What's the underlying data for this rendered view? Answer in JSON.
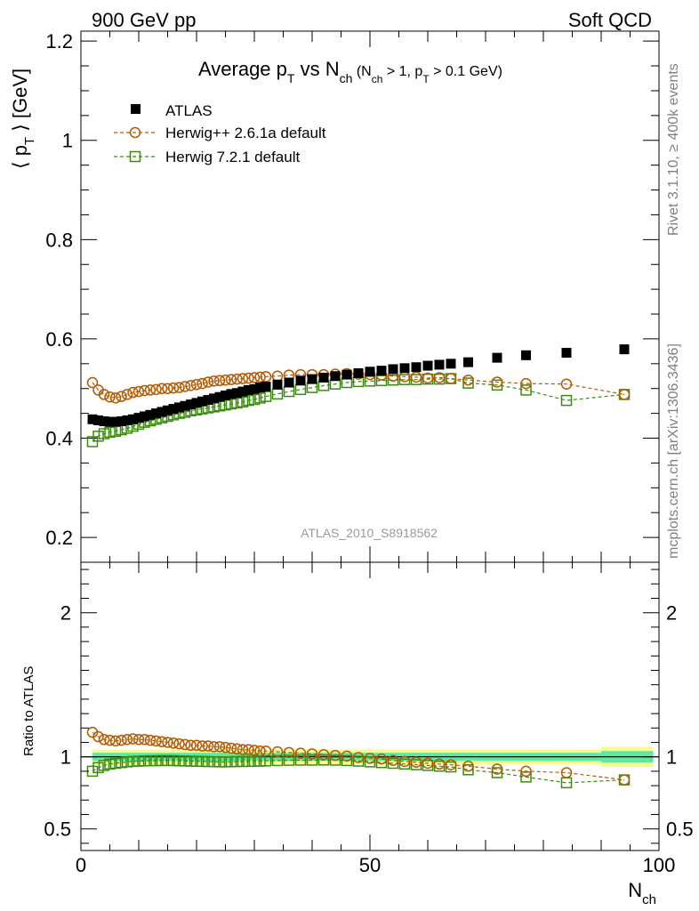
{
  "header": {
    "left": "900 GeV pp",
    "right": "Soft QCD"
  },
  "side_labels": {
    "rivet": "Rivet 3.1.10, ≥ 400k events",
    "mcplots": "mcplots.cern.ch [arXiv:1306.3436]"
  },
  "watermark": "ATLAS_2010_S8918562",
  "colors": {
    "atlas": "#000000",
    "herwigpp": "#b35900",
    "herwig7": "#3a8c0f",
    "band_inner": "#5fe8a0",
    "band_outer": "#fbfb8c"
  },
  "chart_data": [
    {
      "type": "scatter",
      "title": {
        "main": "Average p",
        "main_sub": "T",
        "vs": " vs N",
        "vs_sub": "ch",
        "cond1": " (N",
        "cond1_sub": "ch",
        "cond2": " > 1, p",
        "cond2_sub": "T",
        "cond3": " > 0.1 GeV)"
      },
      "ylabel": {
        "open": "⟨ p",
        "sub": "T",
        "close": " ⟩  [GeV]"
      },
      "xlim": [
        0,
        100
      ],
      "ylim": [
        0.15,
        1.22
      ],
      "yticks": [
        0.2,
        0.4,
        0.6,
        0.8,
        1,
        1.2
      ],
      "ytick_labels": [
        "0.2",
        "0.4",
        "0.6",
        "0.8",
        "1",
        "1.2"
      ],
      "legend_position": "top-left",
      "series": [
        {
          "name": "ATLAS",
          "marker": "filled-square",
          "x": [
            2,
            3,
            4,
            5,
            6,
            7,
            8,
            9,
            10,
            11,
            12,
            13,
            14,
            15,
            16,
            17,
            18,
            19,
            20,
            21,
            22,
            23,
            24,
            25,
            26,
            27,
            28,
            29,
            30,
            31,
            32,
            34,
            36,
            38,
            40,
            42,
            44,
            46,
            48,
            50,
            52,
            54,
            56,
            58,
            60,
            62,
            64,
            67,
            72,
            77,
            84,
            94
          ],
          "y": [
            0.438,
            0.436,
            0.434,
            0.433,
            0.433,
            0.434,
            0.436,
            0.438,
            0.441,
            0.444,
            0.447,
            0.45,
            0.453,
            0.456,
            0.459,
            0.462,
            0.465,
            0.468,
            0.471,
            0.474,
            0.477,
            0.48,
            0.483,
            0.486,
            0.489,
            0.491,
            0.494,
            0.497,
            0.499,
            0.502,
            0.504,
            0.508,
            0.512,
            0.516,
            0.519,
            0.522,
            0.525,
            0.528,
            0.531,
            0.534,
            0.536,
            0.539,
            0.541,
            0.543,
            0.546,
            0.548,
            0.55,
            0.553,
            0.562,
            0.567,
            0.572,
            0.579
          ]
        },
        {
          "name": "Herwig++ 2.6.1a default",
          "marker": "open-circle",
          "x": [
            2,
            3,
            4,
            5,
            6,
            7,
            8,
            9,
            10,
            11,
            12,
            13,
            14,
            15,
            16,
            17,
            18,
            19,
            20,
            21,
            22,
            23,
            24,
            25,
            26,
            27,
            28,
            29,
            30,
            31,
            32,
            34,
            36,
            38,
            40,
            42,
            44,
            46,
            48,
            50,
            52,
            54,
            56,
            58,
            60,
            62,
            64,
            67,
            72,
            77,
            84,
            94
          ],
          "y": [
            0.512,
            0.497,
            0.488,
            0.483,
            0.481,
            0.484,
            0.488,
            0.492,
            0.494,
            0.496,
            0.497,
            0.498,
            0.5,
            0.5,
            0.501,
            0.502,
            0.504,
            0.506,
            0.508,
            0.51,
            0.513,
            0.515,
            0.516,
            0.517,
            0.518,
            0.519,
            0.52,
            0.521,
            0.522,
            0.523,
            0.524,
            0.525,
            0.527,
            0.528,
            0.528,
            0.528,
            0.529,
            0.53,
            0.529,
            0.528,
            0.527,
            0.525,
            0.524,
            0.523,
            0.521,
            0.522,
            0.52,
            0.517,
            0.513,
            0.51,
            0.509,
            0.488
          ]
        },
        {
          "name": "Herwig 7.2.1 default",
          "marker": "open-square",
          "x": [
            2,
            3,
            4,
            5,
            6,
            7,
            8,
            9,
            10,
            11,
            12,
            13,
            14,
            15,
            16,
            17,
            18,
            19,
            20,
            21,
            22,
            23,
            24,
            25,
            26,
            27,
            28,
            29,
            30,
            31,
            32,
            34,
            36,
            38,
            40,
            42,
            44,
            46,
            48,
            50,
            52,
            54,
            56,
            58,
            60,
            62,
            64,
            67,
            72,
            77,
            84,
            94
          ],
          "y": [
            0.393,
            0.404,
            0.409,
            0.412,
            0.414,
            0.417,
            0.42,
            0.424,
            0.428,
            0.432,
            0.435,
            0.438,
            0.441,
            0.444,
            0.447,
            0.45,
            0.452,
            0.455,
            0.457,
            0.459,
            0.461,
            0.463,
            0.465,
            0.467,
            0.469,
            0.471,
            0.473,
            0.476,
            0.478,
            0.481,
            0.484,
            0.489,
            0.494,
            0.498,
            0.502,
            0.506,
            0.509,
            0.512,
            0.514,
            0.515,
            0.516,
            0.517,
            0.518,
            0.518,
            0.519,
            0.519,
            0.52,
            0.511,
            0.507,
            0.497,
            0.476,
            0.488
          ]
        }
      ]
    },
    {
      "type": "scatter",
      "title": "",
      "xlabel": {
        "main": "N",
        "sub": "ch"
      },
      "ylabel": "Ratio to ATLAS",
      "xlim": [
        0,
        100
      ],
      "ylim": [
        0.35,
        2.35
      ],
      "xticks": [
        0,
        50,
        100
      ],
      "xtick_labels": [
        "0",
        "50",
        "100"
      ],
      "yticks": [
        0.5,
        1,
        2
      ],
      "ytick_labels": [
        "0.5",
        "1",
        "2"
      ],
      "reference_line": 1,
      "band": {
        "x": [
          2,
          90,
          99
        ],
        "inner_half_width": [
          0.028,
          0.028,
          0.04
        ],
        "outer_half_width": [
          0.05,
          0.05,
          0.07
        ]
      },
      "series": [
        {
          "name": "Herwig++ 2.6.1a default",
          "marker": "open-circle",
          "x": [
            2,
            3,
            4,
            5,
            6,
            7,
            8,
            9,
            10,
            11,
            12,
            13,
            14,
            15,
            16,
            17,
            18,
            19,
            20,
            21,
            22,
            23,
            24,
            25,
            26,
            27,
            28,
            29,
            30,
            31,
            32,
            34,
            36,
            38,
            40,
            42,
            44,
            46,
            48,
            50,
            52,
            54,
            56,
            58,
            60,
            62,
            64,
            67,
            72,
            77,
            84,
            94
          ],
          "y": [
            1.17,
            1.14,
            1.12,
            1.115,
            1.11,
            1.115,
            1.12,
            1.125,
            1.12,
            1.12,
            1.115,
            1.11,
            1.105,
            1.1,
            1.095,
            1.09,
            1.085,
            1.08,
            1.08,
            1.075,
            1.075,
            1.07,
            1.07,
            1.065,
            1.06,
            1.055,
            1.05,
            1.05,
            1.045,
            1.04,
            1.04,
            1.035,
            1.03,
            1.025,
            1.02,
            1.015,
            1.01,
            1.005,
            0.995,
            0.99,
            0.985,
            0.975,
            0.968,
            0.963,
            0.955,
            0.95,
            0.945,
            0.935,
            0.915,
            0.9,
            0.89,
            0.84
          ]
        },
        {
          "name": "Herwig 7.2.1 default",
          "marker": "open-square",
          "x": [
            2,
            3,
            4,
            5,
            6,
            7,
            8,
            9,
            10,
            11,
            12,
            13,
            14,
            15,
            16,
            17,
            18,
            19,
            20,
            21,
            22,
            23,
            24,
            25,
            26,
            27,
            28,
            29,
            30,
            31,
            32,
            34,
            36,
            38,
            40,
            42,
            44,
            46,
            48,
            50,
            52,
            54,
            56,
            58,
            60,
            62,
            64,
            67,
            72,
            77,
            84,
            94
          ],
          "y": [
            0.9,
            0.925,
            0.94,
            0.95,
            0.955,
            0.96,
            0.965,
            0.968,
            0.97,
            0.972,
            0.973,
            0.973,
            0.974,
            0.974,
            0.974,
            0.972,
            0.971,
            0.97,
            0.969,
            0.968,
            0.967,
            0.966,
            0.965,
            0.965,
            0.966,
            0.967,
            0.968,
            0.968,
            0.969,
            0.97,
            0.972,
            0.974,
            0.976,
            0.977,
            0.977,
            0.978,
            0.977,
            0.974,
            0.97,
            0.965,
            0.96,
            0.955,
            0.95,
            0.945,
            0.94,
            0.935,
            0.93,
            0.91,
            0.89,
            0.86,
            0.82,
            0.84
          ]
        }
      ]
    }
  ]
}
